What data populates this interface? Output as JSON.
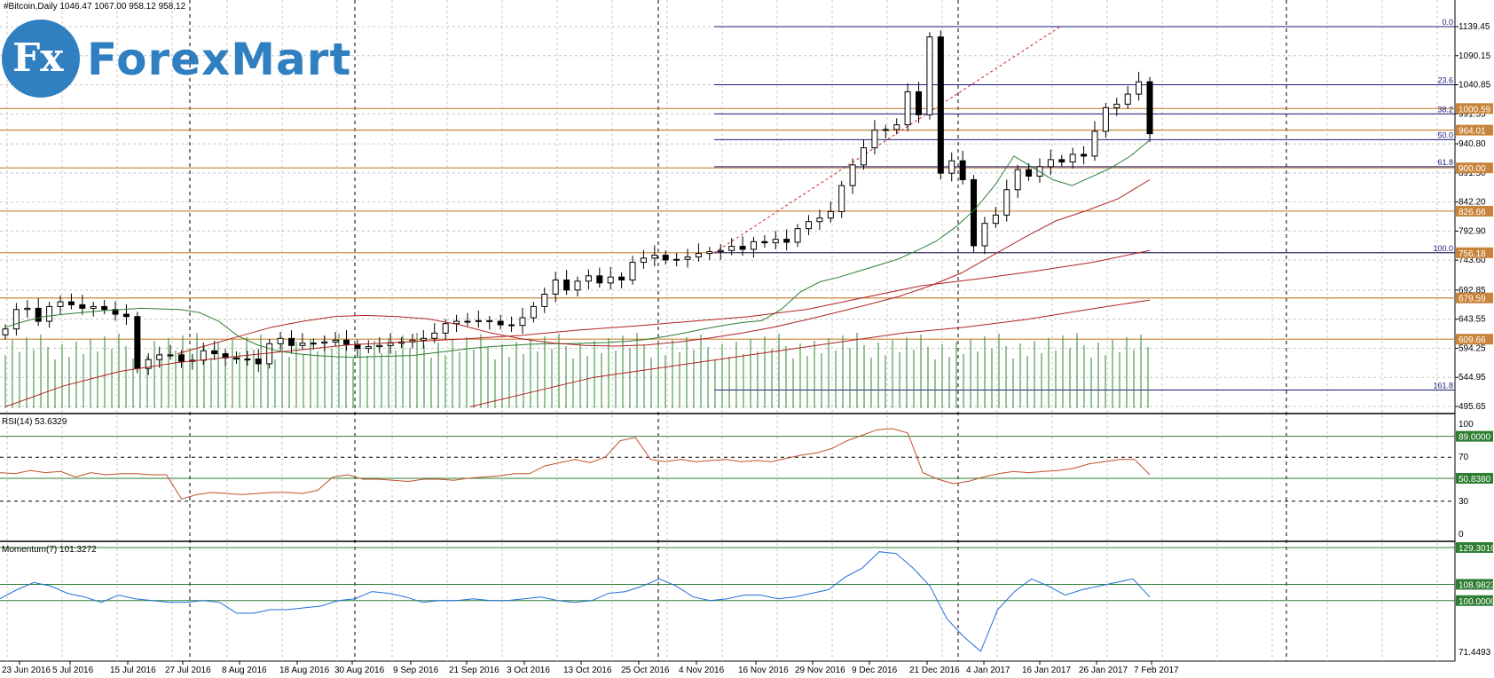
{
  "chart_data": {
    "type": "candlestick",
    "header": "#Bitcoin,Daily  1046.47 1067.00 958.12 958.12",
    "symbol": "#Bitcoin",
    "timeframe": "Daily",
    "last_ohlc": {
      "open": 1046.47,
      "high": 1067.0,
      "low": 958.12,
      "close": 958.12
    },
    "price_axis_ticks": [
      "1139.45",
      "1090.15",
      "1040.85",
      "991.55",
      "940.80",
      "891.50",
      "842.20",
      "792.90",
      "743.60",
      "692.85",
      "643.55",
      "594.25",
      "544.95",
      "495.65"
    ],
    "date_labels": [
      "23 Jun 2016",
      "5 Jul 2016",
      "15 Jul 2016",
      "27 Jul 2016",
      "8 Aug 2016",
      "18 Aug 2016",
      "30 Aug 2016",
      "9 Sep 2016",
      "21 Sep 2016",
      "3 Oct 2016",
      "13 Oct 2016",
      "25 Oct 2016",
      "4 Nov 2016",
      "16 Nov 2016",
      "29 Nov 2016",
      "9 Dec 2016",
      "21 Dec 2016",
      "4 Jan 2017",
      "16 Jan 2017",
      "26 Jan 2017",
      "7 Feb 2017"
    ],
    "horizontal_levels": [
      {
        "label": "1000.59",
        "value": 1000.59
      },
      {
        "label": "964.01",
        "value": 964.01
      },
      {
        "label": "900.00",
        "value": 900.0
      },
      {
        "label": "826.66",
        "value": 826.66
      },
      {
        "label": "756.18",
        "value": 756.18
      },
      {
        "label": "679.59",
        "value": 679.59
      },
      {
        "label": "609.66",
        "value": 609.66
      }
    ],
    "fibonacci": [
      {
        "label": "0.0",
        "value": 1139.45
      },
      {
        "label": "23.6",
        "value": 1040.85
      },
      {
        "label": "38.2",
        "value": 991.55
      },
      {
        "label": "50.0",
        "value": 947.8
      },
      {
        "label": "61.8",
        "value": 902.0
      },
      {
        "label": "100.0",
        "value": 756.18
      },
      {
        "label": "161.8",
        "value": 523.5
      }
    ],
    "series": [
      {
        "name": "",
        "type": "candles",
        "close_approx": [
          627,
          660,
          662,
          640,
          665,
          673,
          668,
          662,
          665,
          660,
          652,
          648,
          560,
          575,
          583,
          583,
          572,
          574,
          590,
          585,
          578,
          576,
          576,
          568,
          602,
          611,
          599,
          603,
          603,
          605,
          608,
          601,
          594,
          597,
          599,
          603,
          605,
          608,
          611,
          620,
          636,
          640,
          640,
          641,
          640,
          634,
          633,
          646,
          665,
          686,
          710,
          693,
          708,
          717,
          705,
          715,
          710,
          740,
          747,
          752,
          744,
          745,
          749,
          755,
          758,
          760,
          767,
          762,
          775,
          773,
          779,
          774,
          797,
          809,
          815,
          826,
          870,
          905,
          934,
          964,
          965,
          973,
          1029,
          990,
          1122,
          891,
          912,
          880,
          768,
          806,
          820,
          863,
          897,
          886,
          902,
          914,
          910,
          923,
          920,
          962,
          1002,
          1008,
          1025,
          1046,
          958
        ]
      },
      {
        "name": "",
        "type": "ma-fast",
        "values_approx": [
          630,
          640,
          648,
          652,
          655,
          658,
          660,
          662,
          661,
          660,
          655,
          640,
          615,
          600,
          590,
          585,
          582,
          580,
          579,
          580,
          581,
          582,
          586,
          590,
          594,
          597,
          599,
          601,
          602,
          602,
          603,
          604,
          606,
          609,
          614,
          620,
          627,
          633,
          638,
          641,
          660,
          690,
          707,
          715,
          725,
          735,
          745,
          760,
          776,
          800,
          830,
          870,
          920,
          900,
          880,
          870,
          885,
          900,
          920,
          947
        ]
      },
      {
        "name": "",
        "type": "ma-mid",
        "values_approx": [
          585,
          600,
          615,
          630,
          640,
          648,
          650,
          648,
          644,
          634,
          620,
          610,
          603,
          599,
          598,
          600,
          605,
          612,
          620,
          630,
          642,
          655,
          668,
          682,
          700,
          722,
          752,
          782,
          810,
          828,
          848,
          880
        ]
      },
      {
        "name": "",
        "type": "ma-slow",
        "values_approx": [
          495,
          530,
          555,
          570,
          580,
          590,
          600,
          605,
          610,
          616,
          625,
          632,
          640,
          648,
          660,
          680,
          700,
          712,
          725,
          740,
          760
        ]
      },
      {
        "name": "",
        "type": "ma-slowest",
        "values_approx": [
          495,
          520,
          545,
          560,
          575,
          590,
          605,
          620,
          630,
          643,
          660,
          676
        ]
      }
    ],
    "volume_bars": "histogram (green)",
    "indicators": [
      {
        "name": "RSI(14)",
        "label": "RSI(14) 53.6329",
        "value": 53.6329,
        "axis_ticks": [
          "100",
          "70",
          "30",
          "0"
        ],
        "levels": [
          {
            "label": "89.0000",
            "value": 89.0
          },
          {
            "label": "50.8380",
            "value": 50.838
          }
        ],
        "values_approx": [
          56,
          55,
          58,
          56,
          57,
          52,
          56,
          54,
          55,
          55,
          54,
          54,
          32,
          36,
          38,
          37,
          36,
          37,
          38,
          38,
          37,
          40,
          52,
          54,
          50,
          50,
          49,
          48,
          50,
          50,
          49,
          51,
          52,
          53,
          55,
          55,
          62,
          65,
          68,
          65,
          70,
          85,
          88,
          68,
          66,
          68,
          66,
          67,
          68,
          66,
          67,
          66,
          69,
          72,
          74,
          78,
          85,
          90,
          95,
          96,
          92,
          56,
          50,
          46,
          48,
          52,
          55,
          57,
          56,
          57,
          58,
          60,
          64,
          66,
          68,
          68,
          54
        ]
      },
      {
        "name": "Momentum(7)",
        "label": "Momentum(7) 101.3272",
        "value": 101.3272,
        "axis_ticks": [
          "71.4493"
        ],
        "levels": [
          {
            "label": "129.3016",
            "value": 129.3016
          },
          {
            "label": "108.9823",
            "value": 108.9823
          },
          {
            "label": "100.0000",
            "value": 100.0
          }
        ],
        "values_approx": [
          101,
          106,
          110,
          108,
          104,
          102,
          99,
          103,
          101,
          100,
          99,
          99,
          100,
          99,
          93,
          93,
          95,
          95,
          96,
          97,
          100,
          101,
          105,
          104,
          102,
          99,
          100,
          100,
          101,
          100,
          100,
          101,
          102,
          100,
          99,
          100,
          104,
          105,
          108,
          112,
          108,
          102,
          100,
          101,
          103,
          103,
          101,
          102,
          104,
          106,
          113,
          118,
          127,
          126,
          118,
          108,
          90,
          80,
          72,
          95,
          105,
          112,
          108,
          103,
          106,
          108,
          110,
          112,
          102
        ]
      }
    ]
  }
}
